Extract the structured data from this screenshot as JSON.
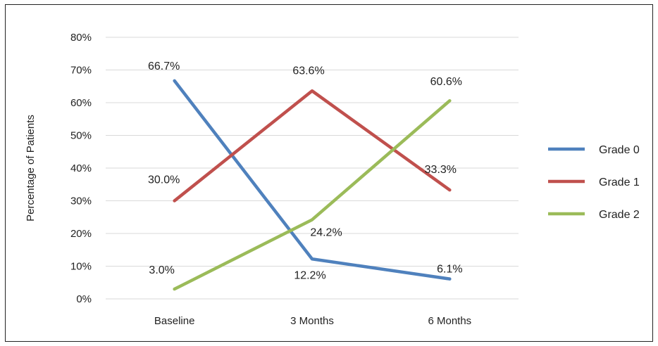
{
  "chart_data": {
    "type": "line",
    "title": "",
    "xlabel": "",
    "ylabel": "Percentage of Patients",
    "categories": [
      "Baseline",
      "3 Months",
      "6 Months"
    ],
    "ylim": [
      0,
      80
    ],
    "y_ticks": [
      "0%",
      "10%",
      "20%",
      "30%",
      "40%",
      "50%",
      "60%",
      "70%",
      "80%"
    ],
    "y_tick_values": [
      0,
      10,
      20,
      30,
      40,
      50,
      60,
      70,
      80
    ],
    "grid": true,
    "legend_position": "right",
    "series": [
      {
        "name": "Grade 0",
        "color": "#4f81bd",
        "values": [
          66.7,
          12.2,
          6.1
        ],
        "labels": [
          "66.7%",
          "12.2%",
          "6.1%"
        ]
      },
      {
        "name": "Grade 1",
        "color": "#c0504d",
        "values": [
          30.0,
          63.6,
          33.3
        ],
        "labels": [
          "30.0%",
          "63.6%",
          "33.3%"
        ]
      },
      {
        "name": "Grade 2",
        "color": "#9bbb59",
        "values": [
          3.0,
          24.2,
          60.6
        ],
        "labels": [
          "3.0%",
          "24.2%",
          "60.6%"
        ]
      }
    ]
  }
}
